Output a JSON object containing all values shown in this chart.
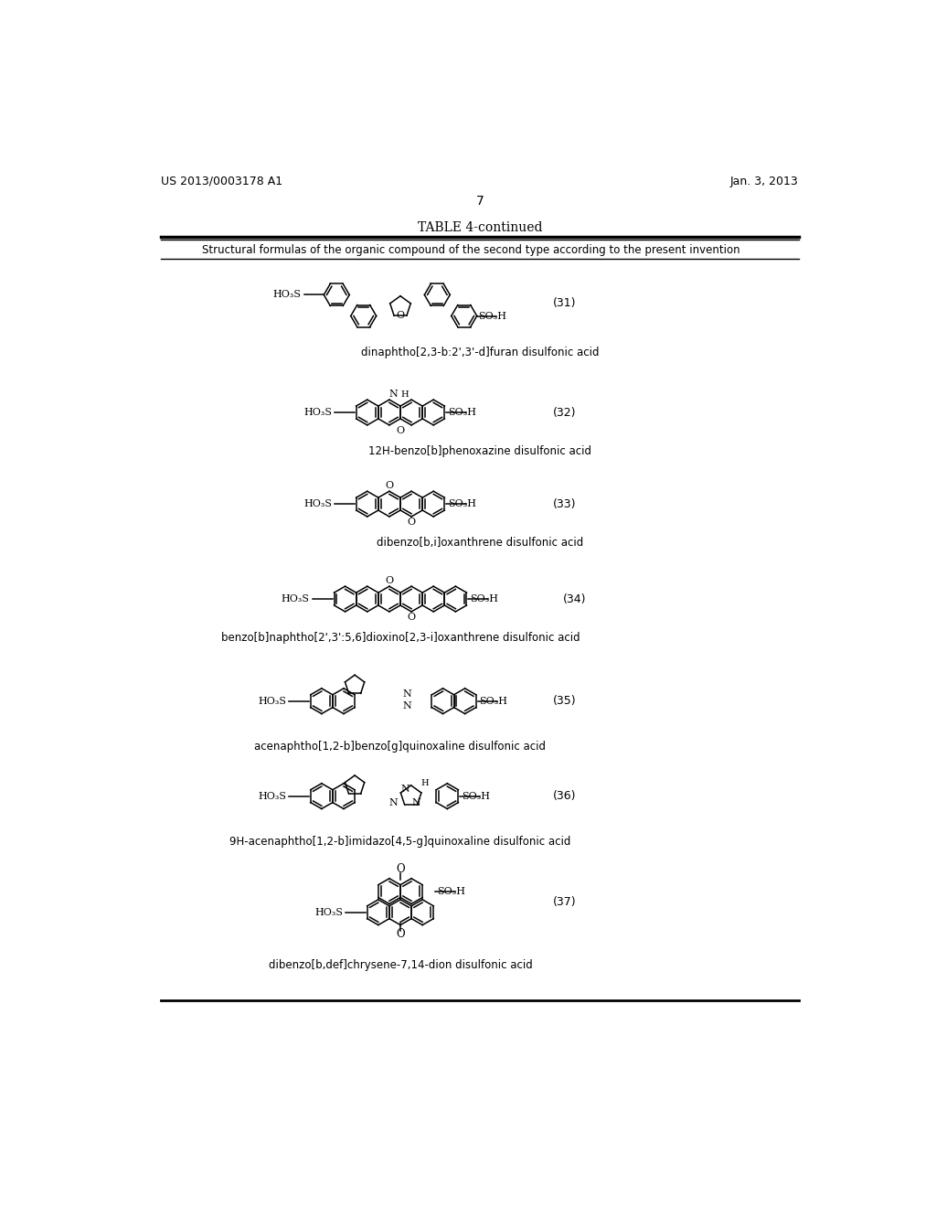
{
  "bg_color": "#ffffff",
  "header_left": "US 2013/0003178 A1",
  "header_right": "Jan. 3, 2013",
  "page_number": "7",
  "table_title": "TABLE 4-continued",
  "table_subtitle": "Structural formulas of the organic compound of the second type according to the present invention",
  "compounds": [
    {
      "number": "(31)",
      "name": "dinaphtho[2,3-b:2',3'-d]furan disulfonic acid",
      "left_group": "HO₃S",
      "right_group": "SO₃H"
    },
    {
      "number": "(32)",
      "name": "12H-benzo[b]phenoxazine disulfonic acid",
      "left_group": "HO₃S",
      "right_group": "SO₃H"
    },
    {
      "number": "(33)",
      "name": "dibenzo[b,i]oxanthrene disulfonic acid",
      "left_group": "HO₃S",
      "right_group": "SO₃H"
    },
    {
      "number": "(34)",
      "name": "benzo[b]naphtho[2',3':5,6]dioxino[2,3-i]oxanthrene disulfonic acid",
      "left_group": "HO₃S",
      "right_group": "SO₃H"
    },
    {
      "number": "(35)",
      "name": "acenaphtho[1,2-b]benzo[g]quinoxaline disulfonic acid",
      "left_group": "HO₃S",
      "right_group": "SO₃H"
    },
    {
      "number": "(36)",
      "name": "9H-acenaphtho[1,2-b]imidazo[4,5-g]quinoxaline disulfonic acid",
      "left_group": "HO₃S",
      "right_group": "SO₃H"
    },
    {
      "number": "(37)",
      "name": "dibenzo[b,def]chrysene-7,14-dion disulfonic acid",
      "left_group": "HO₃S",
      "right_group": "SO₃H"
    }
  ]
}
